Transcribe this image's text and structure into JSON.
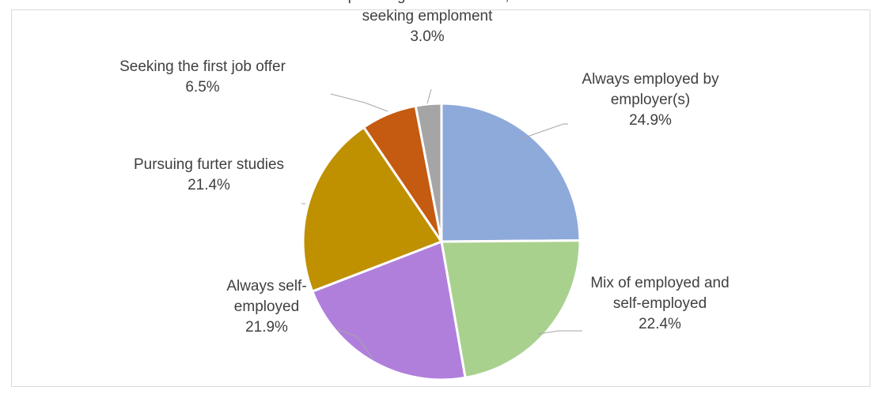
{
  "chart_data": {
    "type": "pie",
    "title": "",
    "slices": [
      {
        "label": "Always employed by employer(s)",
        "label_lines": [
          "Always employed by",
          "employer(s)"
        ],
        "value": 24.9,
        "value_label": "24.9%",
        "color": "#8eaadb"
      },
      {
        "label": "Mix of employed and self-employed",
        "label_lines": [
          "Mix of employed and",
          "self-employed"
        ],
        "value": 22.4,
        "value_label": "22.4%",
        "color": "#a9d18e"
      },
      {
        "label": "Always self-employed",
        "label_lines": [
          "Always self-",
          "employed"
        ],
        "value": 21.9,
        "value_label": "21.9%",
        "color": "#b07fdc"
      },
      {
        "label": "Pursuing furter studies",
        "label_lines": [
          "Pursuing furter studies"
        ],
        "value": 21.4,
        "value_label": "21.4%",
        "color": "#bf9000"
      },
      {
        "label": "Seeking the first job offer",
        "label_lines": [
          "Seeking the first job offer"
        ],
        "value": 6.5,
        "value_label": "6.5%",
        "color": "#c55a11"
      },
      {
        "label": "Not pursuing further studies, not seeking emploment",
        "label_lines": [
          "Not pursuing further studies, not",
          "seeking emploment"
        ],
        "value": 3.0,
        "value_label": "3.0%",
        "color": "#a5a5a5"
      }
    ],
    "start": "12 o'clock",
    "direction": "clockwise",
    "legend": "none",
    "data_labels": "outside with leader lines"
  }
}
